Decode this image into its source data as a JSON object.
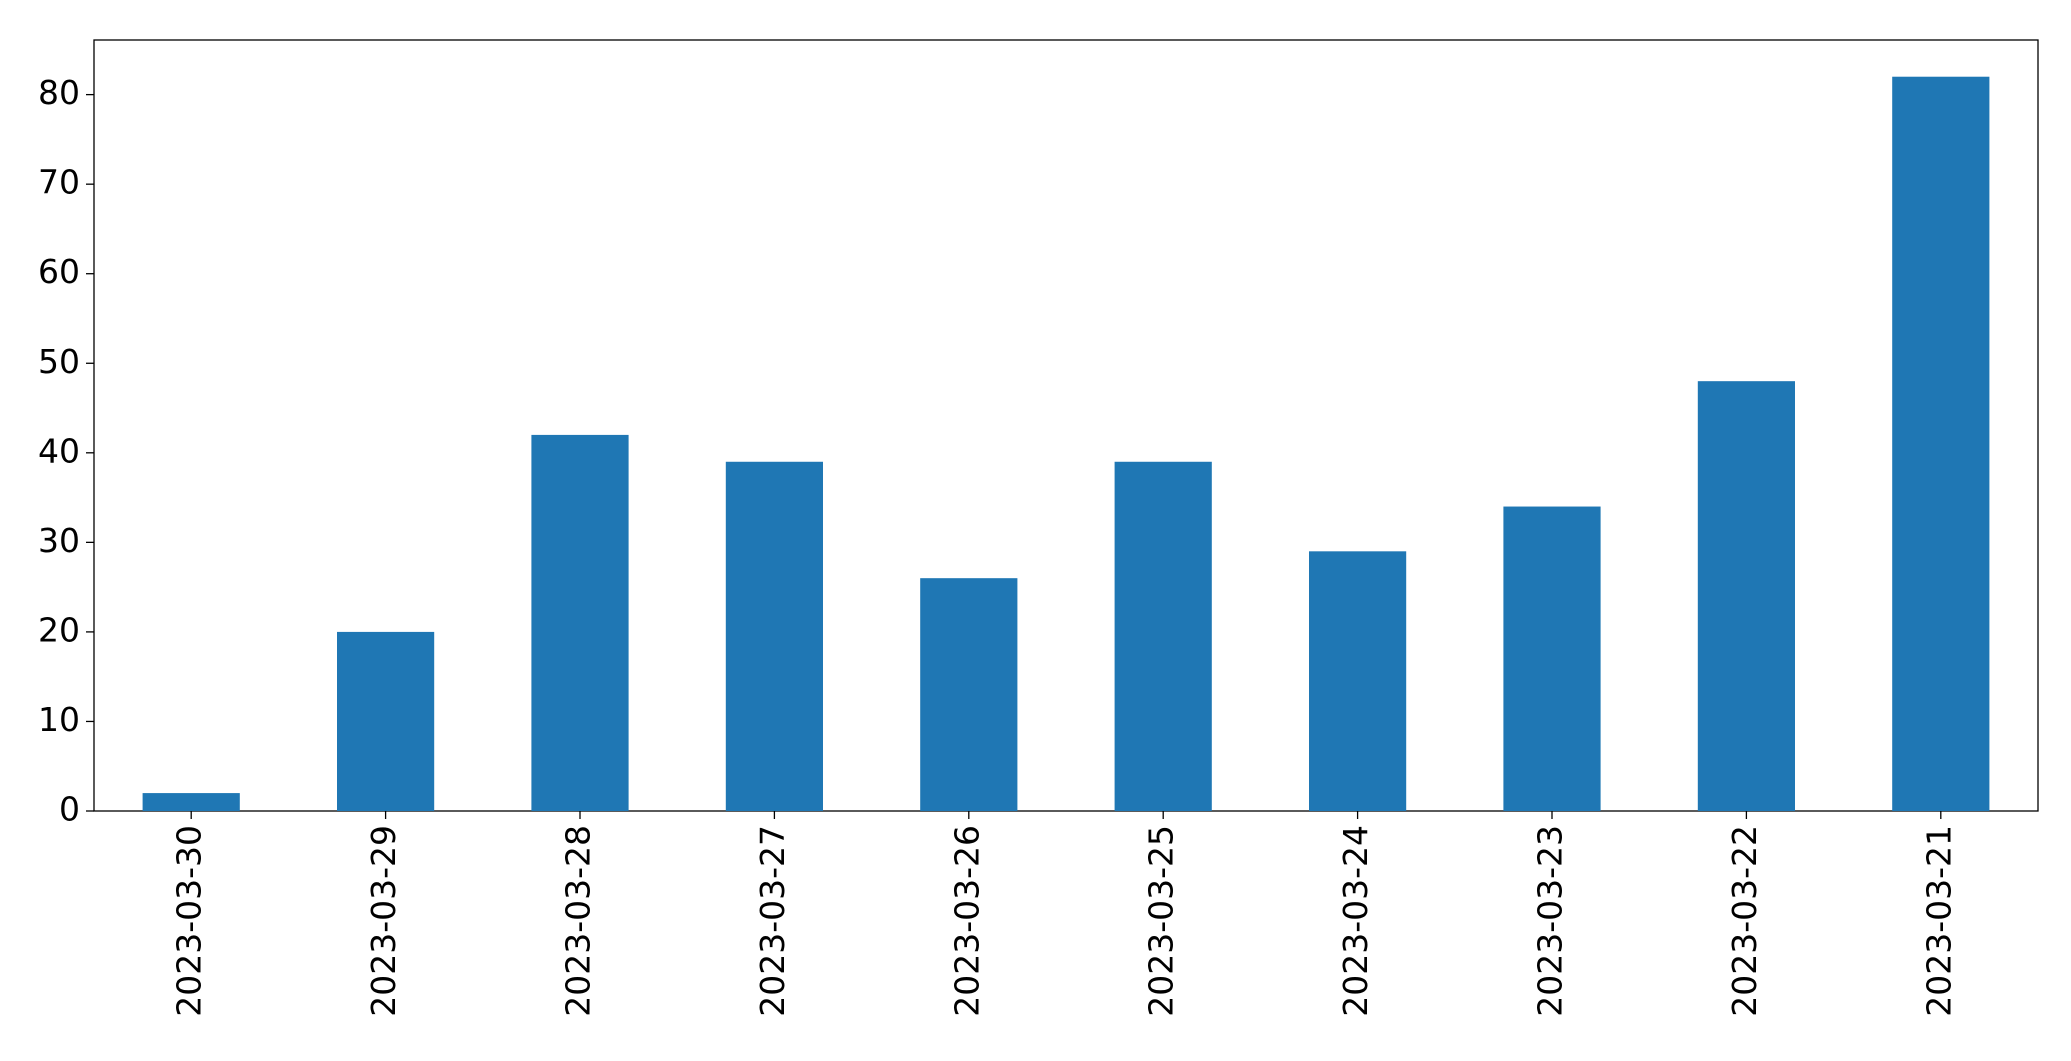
{
  "chart_data": {
    "type": "bar",
    "categories": [
      "2023-03-30",
      "2023-03-29",
      "2023-03-28",
      "2023-03-27",
      "2023-03-26",
      "2023-03-25",
      "2023-03-24",
      "2023-03-23",
      "2023-03-22",
      "2023-03-21"
    ],
    "values": [
      2,
      20,
      42,
      39,
      26,
      39,
      29,
      34,
      48,
      82
    ],
    "color": "#1f77b4",
    "ylim": [
      0,
      86.1
    ],
    "yticks": [
      0,
      10,
      20,
      30,
      40,
      50,
      60,
      70,
      80
    ],
    "grid": false
  }
}
